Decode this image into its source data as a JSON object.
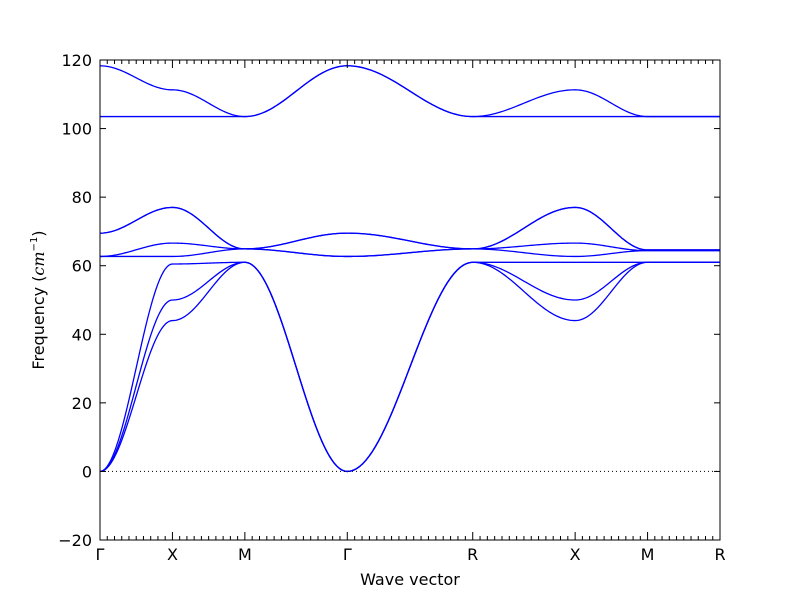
{
  "chart_data": {
    "type": "line",
    "title": "",
    "xlabel": "Wave vector",
    "ylabel_main": "Frequency (",
    "ylabel_unit": "cm",
    "ylabel_exp": "−1",
    "ylabel_close": ")",
    "ylim": [
      -20,
      120
    ],
    "y_ticks": [
      -20,
      0,
      20,
      40,
      60,
      80,
      100,
      120
    ],
    "y_tick_labels": [
      "−20",
      "0",
      "20",
      "40",
      "60",
      "80",
      "100",
      "120"
    ],
    "x_tick_labels": [
      "Γ",
      "X",
      "M",
      "Γ",
      "R",
      "X",
      "M",
      "R"
    ],
    "segment_lengths": [
      1,
      1,
      1.414,
      1.732,
      1.414,
      1,
      1
    ],
    "zero_line": "dotted",
    "grid": false,
    "line_color": "#0000ff",
    "bands": [
      [
        0,
        44,
        61,
        0,
        61,
        44,
        61,
        61
      ],
      [
        0,
        50,
        61,
        0,
        61,
        50,
        61,
        61
      ],
      [
        0,
        60.5,
        61,
        0,
        61,
        61,
        61,
        61
      ],
      [
        62.7,
        62.7,
        64.9,
        62.7,
        64.9,
        62.7,
        64.4,
        64.4
      ],
      [
        62.7,
        66.6,
        64.9,
        62.7,
        64.9,
        66.6,
        64.4,
        64.4
      ],
      [
        69.5,
        77,
        64.9,
        69.5,
        64.9,
        77,
        64.6,
        64.6
      ],
      [
        69.5,
        77,
        64.9,
        69.5,
        64.9,
        77,
        64.6,
        64.6
      ],
      [
        103.5,
        103.5,
        103.5,
        118.3,
        103.5,
        103.5,
        103.5,
        103.5
      ],
      [
        118.3,
        111.3,
        103.5,
        118.3,
        103.5,
        111.3,
        103.5,
        103.5
      ]
    ]
  }
}
